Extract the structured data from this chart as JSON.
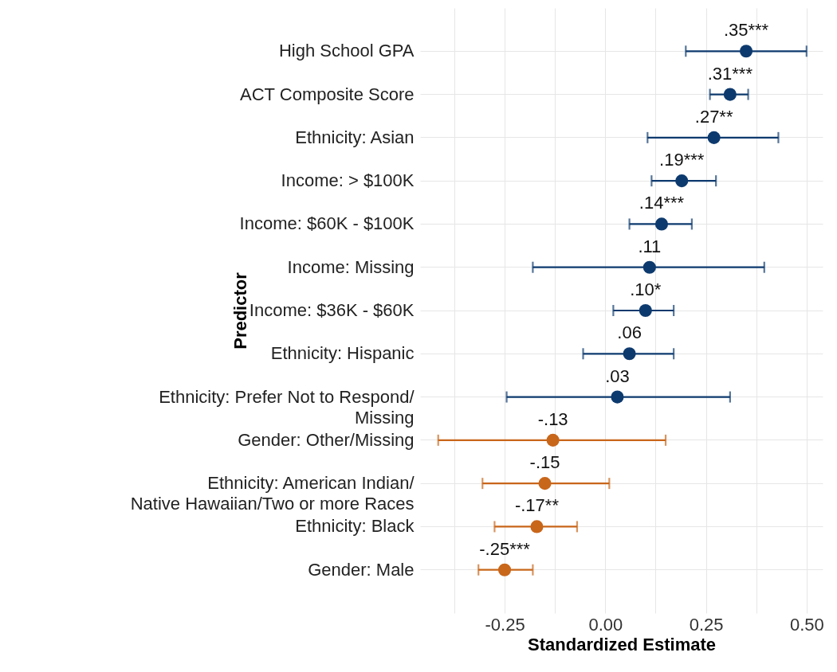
{
  "chart_data": {
    "type": "scatter",
    "orientation": "horizontal",
    "xlabel": "Standardized Estimate",
    "ylabel": "Predictor",
    "grid": true,
    "marker": "circle",
    "categories": [
      "High School GPA",
      "ACT Composite Score",
      "Ethnicity: Asian",
      "Income: > $100K",
      "Income: $60K - $100K",
      "Income: Missing",
      "Income: $36K - $60K",
      "Ethnicity: Hispanic",
      "Ethnicity: Prefer Not to Respond/\nMissing",
      "Gender: Other/Missing",
      "Ethnicity: American Indian/\nNative Hawaiian/Two or more Races",
      "Ethnicity: Black",
      "Gender: Male"
    ],
    "xlim": [
      -0.46,
      0.54
    ],
    "xticks": [
      {
        "value": -0.375,
        "label": null
      },
      {
        "value": -0.25,
        "label": "-0.25"
      },
      {
        "value": -0.125,
        "label": null
      },
      {
        "value": 0,
        "label": "0.00"
      },
      {
        "value": 0.125,
        "label": null
      },
      {
        "value": 0.25,
        "label": "0.25"
      },
      {
        "value": 0.375,
        "label": null
      },
      {
        "value": 0.5,
        "label": "0.50"
      }
    ],
    "series": [
      {
        "color": "#0d3a6e",
        "values": [
          0.35,
          0.31,
          0.27,
          0.19,
          0.14,
          0.11,
          0.1,
          0.06,
          0.03,
          null,
          null,
          null,
          null
        ],
        "errors": [
          [
            0.2,
            0.5
          ],
          [
            0.26,
            0.355
          ],
          [
            0.105,
            0.43
          ],
          [
            0.115,
            0.275
          ],
          [
            0.06,
            0.215
          ],
          [
            -0.18,
            0.395
          ],
          [
            0.02,
            0.17
          ],
          [
            -0.055,
            0.17
          ],
          [
            -0.245,
            0.31
          ],
          null,
          null,
          null,
          null
        ],
        "value_labels": [
          ".35***",
          ".31***",
          ".27**",
          ".19***",
          ".14***",
          ".11",
          ".10*",
          ".06",
          ".03",
          null,
          null,
          null,
          null
        ]
      },
      {
        "color": "#c8661a",
        "values": [
          null,
          null,
          null,
          null,
          null,
          null,
          null,
          null,
          null,
          -0.13,
          -0.15,
          -0.17,
          -0.25
        ],
        "errors": [
          null,
          null,
          null,
          null,
          null,
          null,
          null,
          null,
          null,
          [
            -0.415,
            0.15
          ],
          [
            -0.305,
            0.01
          ],
          [
            -0.275,
            -0.07
          ],
          [
            -0.315,
            -0.18
          ]
        ],
        "value_labels": [
          null,
          null,
          null,
          null,
          null,
          null,
          null,
          null,
          null,
          "-.13",
          "-.15",
          "-.17**",
          "-.25***"
        ]
      }
    ]
  }
}
